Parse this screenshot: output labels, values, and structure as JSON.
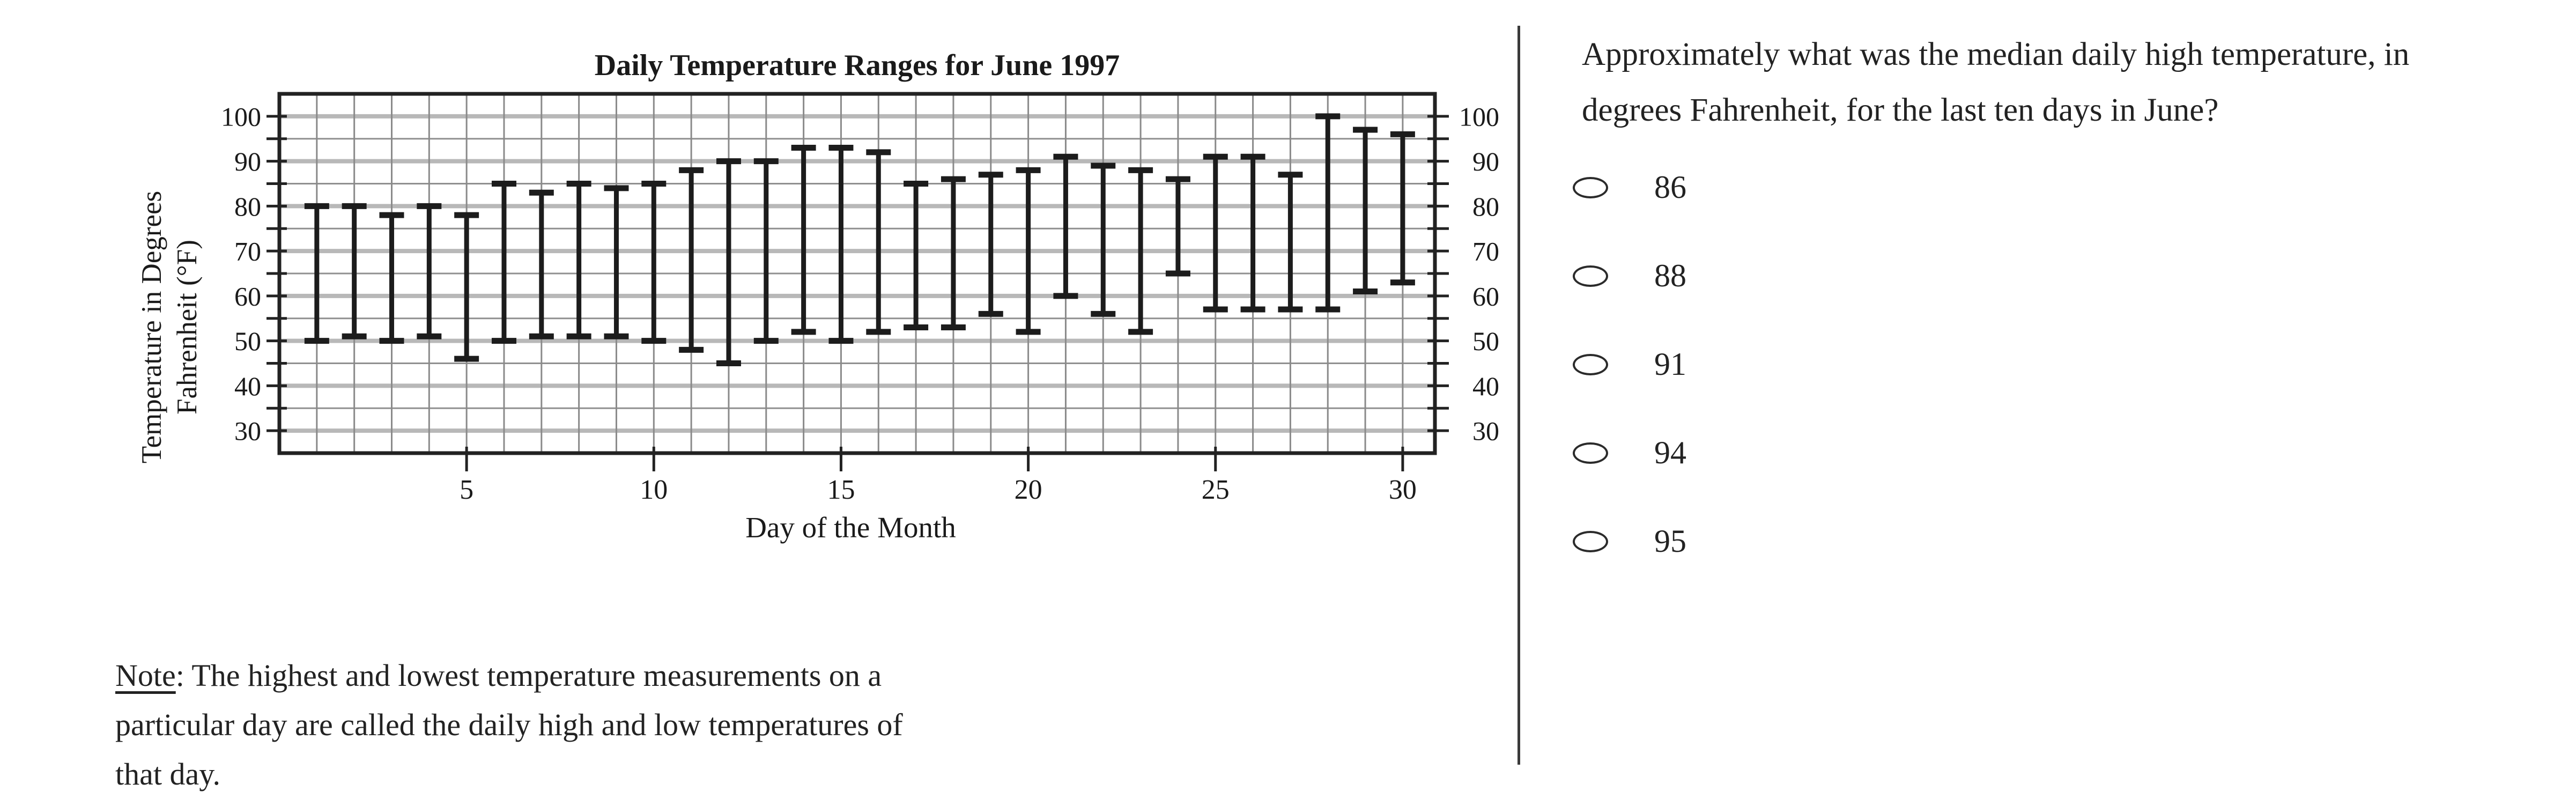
{
  "chart_data": {
    "type": "bar",
    "variant": "vertical range bars (daily low to daily high) with end caps",
    "title": "Daily Temperature Ranges for June 1997",
    "xlabel": "Day of the Month",
    "ylabel": "Temperature in Degrees\nFahrenheit (°F)",
    "ylim": [
      25,
      105
    ],
    "ytick_labels": [
      100,
      90,
      80,
      70,
      60,
      50,
      40,
      30
    ],
    "ytick_minor_step": 5,
    "ytick_labels_both_sides": true,
    "xticks": [
      5,
      10,
      15,
      20,
      25,
      30
    ],
    "x_range_days": [
      1,
      30
    ],
    "grid": "horizontal every 5°F (thicker at 10s), vertical every day",
    "legend_position": "none",
    "x": [
      1,
      2,
      3,
      4,
      5,
      6,
      7,
      8,
      9,
      10,
      11,
      12,
      13,
      14,
      15,
      16,
      17,
      18,
      19,
      20,
      21,
      22,
      23,
      24,
      25,
      26,
      27,
      28,
      29,
      30
    ],
    "series": [
      {
        "name": "daily high temperature",
        "values": [
          80,
          80,
          78,
          80,
          78,
          85,
          83,
          85,
          84,
          85,
          88,
          90,
          90,
          93,
          93,
          92,
          85,
          86,
          87,
          88,
          91,
          89,
          88,
          86,
          91,
          91,
          87,
          100,
          97,
          96
        ]
      },
      {
        "name": "daily low temperature",
        "values": [
          50,
          51,
          50,
          51,
          46,
          50,
          51,
          51,
          51,
          50,
          48,
          45,
          50,
          52,
          50,
          52,
          53,
          53,
          56,
          52,
          60,
          56,
          52,
          65,
          57,
          57,
          57,
          57,
          61,
          63
        ]
      }
    ]
  },
  "note": {
    "label": "Note",
    "rest": ": The highest and lowest temperature measurements on a\nparticular day are called the daily high and low temperatures of\nthat day."
  },
  "question": {
    "text": "Approximately what was the median daily high temperature, in\ndegrees Fahrenheit, for the last ten days in June?"
  },
  "options": [
    {
      "label": "86"
    },
    {
      "label": "88"
    },
    {
      "label": "91"
    },
    {
      "label": "94"
    },
    {
      "label": "95"
    }
  ],
  "colors": {
    "bar": "#1c1c1c",
    "plot_border": "#222222",
    "grid_major": "#b8b8b8",
    "grid_minor": "#909090",
    "grid_vertical": "#8a8a8a",
    "text": "#1a1a1a",
    "divider": "#3a3a3a"
  }
}
